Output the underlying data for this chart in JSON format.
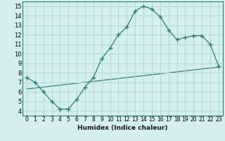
{
  "xlabel": "Humidex (Indice chaleur)",
  "bg_color": "#d5eeee",
  "line_color": "#2e7d7d",
  "grid_color": "#b0d8d8",
  "xlim": [
    -0.5,
    23.5
  ],
  "ylim": [
    3.5,
    15.5
  ],
  "xticks": [
    0,
    1,
    2,
    3,
    4,
    5,
    6,
    7,
    8,
    9,
    10,
    11,
    12,
    13,
    14,
    15,
    16,
    17,
    18,
    19,
    20,
    21,
    22,
    23
  ],
  "yticks": [
    4,
    5,
    6,
    7,
    8,
    9,
    10,
    11,
    12,
    13,
    14,
    15
  ],
  "curve1_x": [
    0,
    1,
    2,
    3,
    4,
    5,
    6,
    7,
    8,
    9,
    10,
    11,
    12,
    13,
    14,
    15,
    16,
    17,
    18,
    19,
    20,
    21,
    22,
    23
  ],
  "curve1_y": [
    7.5,
    7.0,
    6.0,
    5.0,
    4.2,
    4.2,
    5.2,
    6.5,
    7.5,
    9.5,
    10.6,
    12.0,
    12.8,
    14.5,
    15.0,
    14.7,
    13.9,
    12.5,
    11.5,
    11.7,
    11.9,
    11.9,
    11.0,
    8.7
  ],
  "curve2_x": [
    0,
    23
  ],
  "curve2_y": [
    6.3,
    8.6
  ]
}
